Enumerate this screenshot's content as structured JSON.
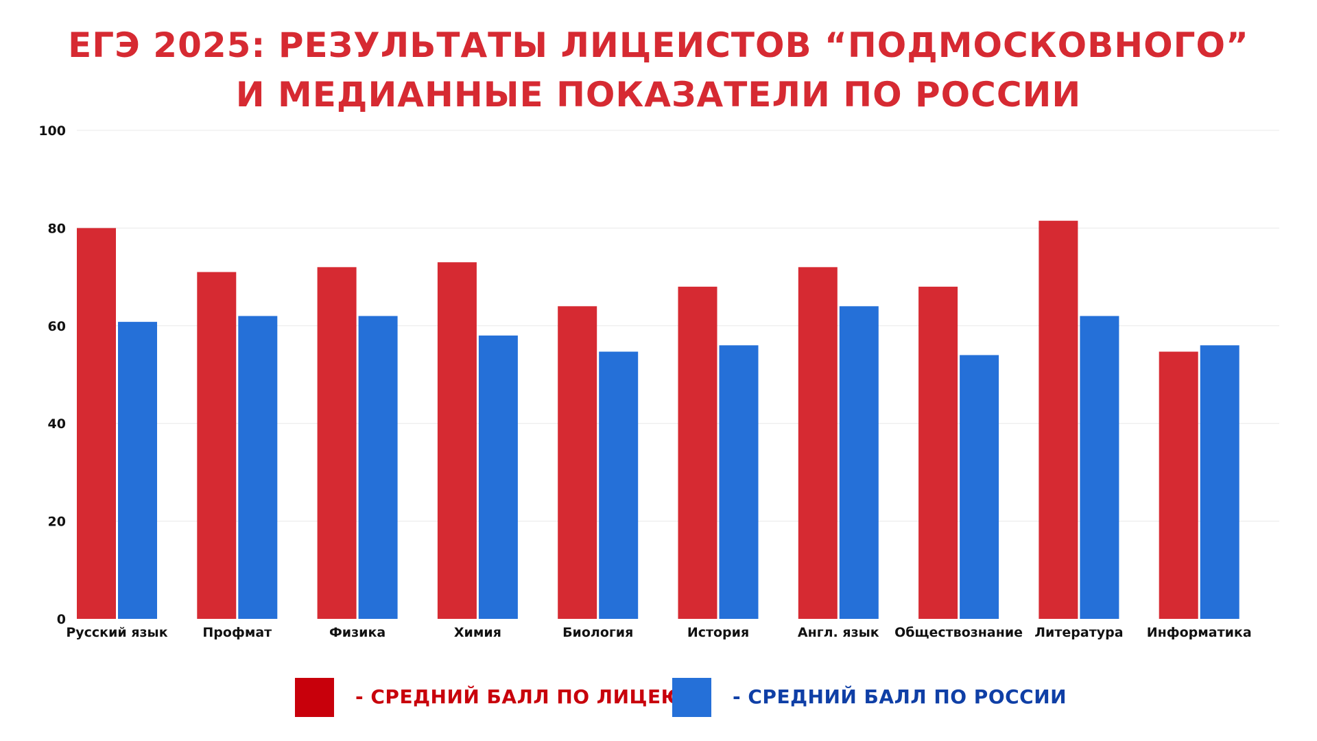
{
  "chart_data": {
    "type": "bar",
    "title_lines": [
      "ЕГЭ 2025: РЕЗУЛЬТАТЫ ЛИЦЕИСТОВ “ПОДМОСКОВНОГО”",
      "И МЕДИАННЫЕ ПОКАЗАТЕЛИ ПО РОССИИ"
    ],
    "categories": [
      "Русский язык",
      "Профмат",
      "Физика",
      "Химия",
      "Биология",
      "История",
      "Англ. язык",
      "Обществознание",
      "Литература",
      "Информатика"
    ],
    "series": [
      {
        "name": "- СРЕДНИЙ БАЛЛ ПО ЛИЦЕЮ",
        "color": "#d62a32",
        "values": [
          80,
          71,
          72,
          73,
          64,
          68,
          72,
          68,
          81.5,
          54.7
        ]
      },
      {
        "name": "- СРЕДНИЙ БАЛЛ ПО РОССИИ",
        "color": "#2570d8",
        "values": [
          60.8,
          62,
          62,
          58,
          54.7,
          56,
          64,
          54,
          62,
          56
        ]
      }
    ],
    "ylim": [
      0,
      100
    ],
    "yticks": [
      0,
      20,
      40,
      60,
      80,
      100
    ],
    "grid": true,
    "legend_position": "bottom",
    "xlabel": "",
    "ylabel": ""
  },
  "colors": {
    "title": "#d62a32",
    "legend_1_swatch": "#c8000b",
    "legend_1_text": "#c8000b",
    "legend_2_swatch": "#2570d8",
    "legend_2_text": "#0f3fa6",
    "gridline": "#e8e8e8",
    "axis_text": "#111111"
  }
}
